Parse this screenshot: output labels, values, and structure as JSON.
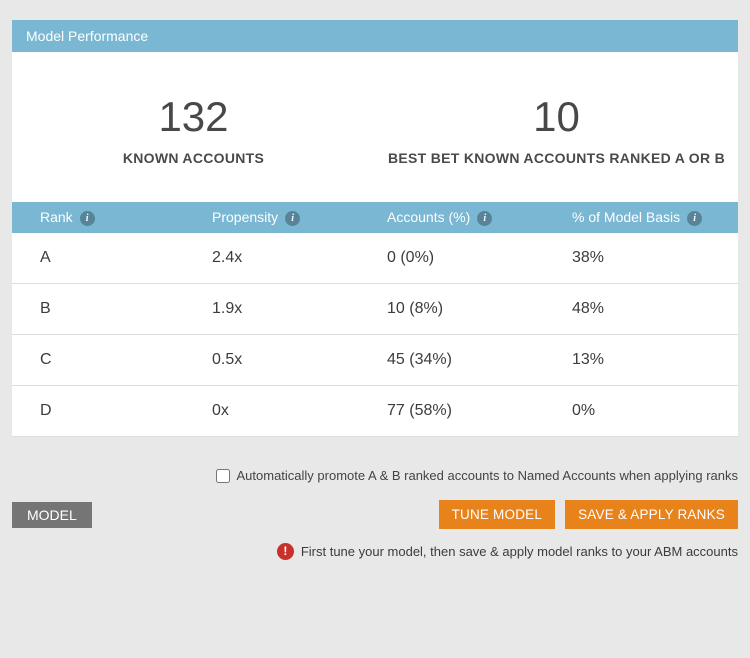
{
  "colors": {
    "header_blue": "#79b7d3",
    "button_orange": "#e8831c",
    "model_tab_gray": "#757575",
    "warning_red": "#c9302c",
    "page_background": "#e8e8e8"
  },
  "icons": {
    "info": "i",
    "warning": "!"
  },
  "panel": {
    "title": "Model Performance",
    "stats": [
      {
        "value": "132",
        "label": "KNOWN ACCOUNTS"
      },
      {
        "value": "10",
        "label": "BEST BET KNOWN ACCOUNTS RANKED A OR B"
      }
    ],
    "table": {
      "headers": [
        "Rank",
        "Propensity",
        "Accounts (%)",
        "% of Model Basis"
      ],
      "rows": [
        {
          "rank": "A",
          "propensity": "2.4x",
          "accounts": "0 (0%)",
          "basis": "38%"
        },
        {
          "rank": "B",
          "propensity": "1.9x",
          "accounts": "10 (8%)",
          "basis": "48%"
        },
        {
          "rank": "C",
          "propensity": "0.5x",
          "accounts": "45 (34%)",
          "basis": "13%"
        },
        {
          "rank": "D",
          "propensity": "0x",
          "accounts": "77 (58%)",
          "basis": "0%"
        }
      ]
    }
  },
  "footer": {
    "checkbox_label": "Automatically promote A & B ranked accounts to Named Accounts when applying ranks",
    "model_label": "MODEL",
    "tune_button": "TUNE MODEL",
    "save_button": "SAVE & APPLY RANKS",
    "note": "First tune your model, then save & apply model ranks to your ABM accounts"
  }
}
